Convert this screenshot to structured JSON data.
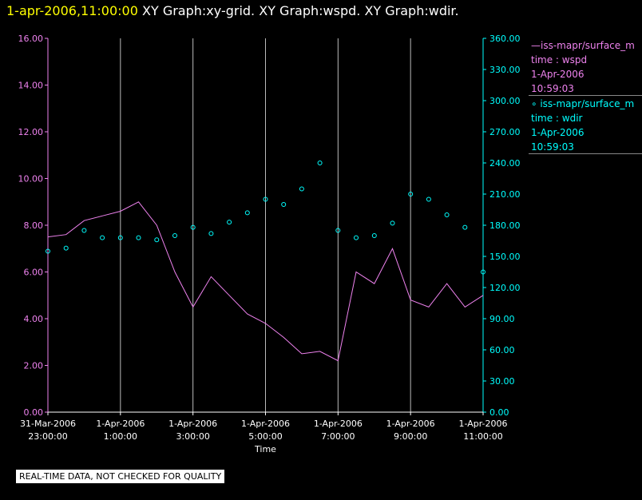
{
  "header": {
    "timestamp": "1-apr-2006,11:00:00",
    "titles": [
      "XY Graph:xy-grid.",
      "XY Graph:wspd.",
      "XY Graph:wdir."
    ]
  },
  "legend": [
    {
      "series": "iss-mapr/surface_m",
      "variable": "time : wspd",
      "date": "1-Apr-2006",
      "time": "10:59:03",
      "color": "#ee82ee",
      "marker": "line"
    },
    {
      "series": "iss-mapr/surface_m",
      "variable": "time : wdir",
      "date": "1-Apr-2006",
      "time": "10:59:03",
      "color": "#00ffff",
      "marker": "circle"
    }
  ],
  "footer_note": "REAL-TIME DATA, NOT CHECKED FOR QUALITY",
  "chart_data": {
    "type": "line",
    "xlabel": "Time",
    "x_range": [
      "2006-03-31T23:00:00",
      "2006-04-01T11:00:00"
    ],
    "x_ticks": [
      {
        "t": "2006-03-31T23:00:00",
        "date": "31-Mar-2006",
        "time": "23:00:00"
      },
      {
        "t": "2006-04-01T01:00:00",
        "date": "1-Apr-2006",
        "time": "1:00:00"
      },
      {
        "t": "2006-04-01T03:00:00",
        "date": "1-Apr-2006",
        "time": "3:00:00"
      },
      {
        "t": "2006-04-01T05:00:00",
        "date": "1-Apr-2006",
        "time": "5:00:00"
      },
      {
        "t": "2006-04-01T07:00:00",
        "date": "1-Apr-2006",
        "time": "7:00:00"
      },
      {
        "t": "2006-04-01T09:00:00",
        "date": "1-Apr-2006",
        "time": "9:00:00"
      },
      {
        "t": "2006-04-01T11:00:00",
        "date": "1-Apr-2006",
        "time": "11:00:00"
      }
    ],
    "grid": "vertical",
    "y_left": {
      "range": [
        0,
        16
      ],
      "ticks": [
        "0.00",
        "2.00",
        "4.00",
        "6.00",
        "8.00",
        "10.00",
        "12.00",
        "14.00",
        "16.00"
      ],
      "color": "#ee82ee"
    },
    "y_right": {
      "range": [
        0,
        360
      ],
      "ticks": [
        "0.00",
        "30.00",
        "60.00",
        "90.00",
        "120.00",
        "150.00",
        "180.00",
        "210.00",
        "240.00",
        "270.00",
        "300.00",
        "330.00",
        "360.00"
      ],
      "color": "#00ffff"
    },
    "series": [
      {
        "variable": "wspd",
        "axis": "left",
        "style": "line",
        "color": "#ee82ee",
        "x": [
          "2006-03-31T23:00:00",
          "2006-03-31T23:30:00",
          "2006-04-01T00:00:00",
          "2006-04-01T00:30:00",
          "2006-04-01T01:00:00",
          "2006-04-01T01:30:00",
          "2006-04-01T02:00:00",
          "2006-04-01T02:30:00",
          "2006-04-01T03:00:00",
          "2006-04-01T03:30:00",
          "2006-04-01T04:00:00",
          "2006-04-01T04:30:00",
          "2006-04-01T05:00:00",
          "2006-04-01T05:30:00",
          "2006-04-01T06:00:00",
          "2006-04-01T06:30:00",
          "2006-04-01T07:00:00",
          "2006-04-01T07:30:00",
          "2006-04-01T08:00:00",
          "2006-04-01T08:30:00",
          "2006-04-01T09:00:00",
          "2006-04-01T09:30:00",
          "2006-04-01T10:00:00",
          "2006-04-01T10:30:00",
          "2006-04-01T11:00:00"
        ],
        "y": [
          7.5,
          7.6,
          8.2,
          8.4,
          8.6,
          9.0,
          8.0,
          6.0,
          4.5,
          5.8,
          5.0,
          4.2,
          3.8,
          3.2,
          2.5,
          2.6,
          2.2,
          6.0,
          5.5,
          7.0,
          4.8,
          4.5,
          5.5,
          4.5,
          5.0
        ]
      },
      {
        "variable": "wdir",
        "axis": "right",
        "style": "markers",
        "color": "#00ffff",
        "x": [
          "2006-03-31T23:00:00",
          "2006-03-31T23:30:00",
          "2006-04-01T00:00:00",
          "2006-04-01T00:30:00",
          "2006-04-01T01:00:00",
          "2006-04-01T01:30:00",
          "2006-04-01T02:00:00",
          "2006-04-01T02:30:00",
          "2006-04-01T03:00:00",
          "2006-04-01T03:30:00",
          "2006-04-01T04:00:00",
          "2006-04-01T04:30:00",
          "2006-04-01T05:00:00",
          "2006-04-01T05:30:00",
          "2006-04-01T06:00:00",
          "2006-04-01T06:30:00",
          "2006-04-01T07:00:00",
          "2006-04-01T07:30:00",
          "2006-04-01T08:00:00",
          "2006-04-01T08:30:00",
          "2006-04-01T09:00:00",
          "2006-04-01T09:30:00",
          "2006-04-01T10:00:00",
          "2006-04-01T10:30:00",
          "2006-04-01T11:00:00"
        ],
        "y": [
          155,
          158,
          175,
          168,
          168,
          168,
          166,
          170,
          178,
          172,
          183,
          192,
          205,
          200,
          215,
          240,
          175,
          168,
          170,
          182,
          210,
          205,
          190,
          178,
          135
        ]
      }
    ]
  }
}
